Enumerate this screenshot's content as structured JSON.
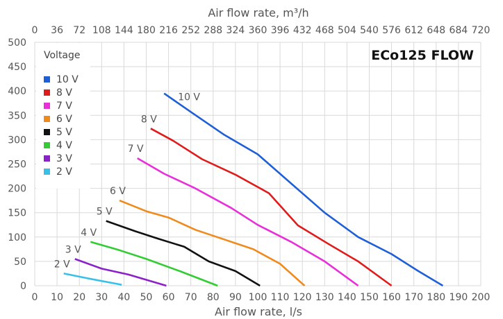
{
  "chart_data": {
    "type": "line",
    "title": "ECo125 FLOW",
    "xlabel": "Air flow rate, l/s",
    "x2label": "Air flow rate, m³/h",
    "ylabel": "",
    "xlim": [
      0,
      200
    ],
    "ylim": [
      0,
      500
    ],
    "x2lim": [
      0,
      720
    ],
    "x_ticks": [
      "0",
      "10",
      "20",
      "30",
      "40",
      "50",
      "60",
      "70",
      "80",
      "90",
      "100",
      "110",
      "120",
      "130",
      "140",
      "150",
      "160",
      "170",
      "180",
      "190",
      "200"
    ],
    "x2_ticks": [
      "0",
      "36",
      "72",
      "108",
      "144",
      "180",
      "216",
      "252",
      "288",
      "324",
      "360",
      "396",
      "432",
      "468",
      "504",
      "540",
      "576",
      "612",
      "648",
      "684",
      "720"
    ],
    "y_ticks": [
      "0",
      "50",
      "100",
      "150",
      "200",
      "250",
      "300",
      "350",
      "400",
      "450",
      "500"
    ],
    "grid": true,
    "legend": {
      "title": "Voltage",
      "placement": "top-left"
    },
    "series": [
      {
        "name": "10 V",
        "label": "10 V",
        "color": "#1f5fd6",
        "x": [
          58,
          70,
          85,
          100,
          115,
          130,
          145,
          160,
          172,
          183
        ],
        "y": [
          395,
          357,
          310,
          270,
          210,
          150,
          100,
          65,
          30,
          0
        ]
      },
      {
        "name": "8 V",
        "label": "8 V",
        "color": "#e01b1b",
        "x": [
          52,
          62,
          75,
          90,
          105,
          118,
          132,
          145,
          160
        ],
        "y": [
          323,
          298,
          260,
          228,
          190,
          124,
          85,
          50,
          0
        ]
      },
      {
        "name": "7 V",
        "label": "7 V",
        "color": "#e830d8",
        "x": [
          46,
          58,
          72,
          88,
          100,
          115,
          130,
          145
        ],
        "y": [
          262,
          230,
          200,
          160,
          125,
          90,
          50,
          0
        ]
      },
      {
        "name": "6 V",
        "label": "6 V",
        "color": "#f08a1c",
        "x": [
          38,
          50,
          60,
          72,
          85,
          98,
          110,
          121
        ],
        "y": [
          175,
          153,
          140,
          115,
          95,
          75,
          45,
          0
        ]
      },
      {
        "name": "5 V",
        "label": "5 V",
        "color": "#111111",
        "x": [
          32,
          45,
          55,
          67,
          78,
          90,
          101
        ],
        "y": [
          133,
          112,
          97,
          80,
          50,
          30,
          0
        ]
      },
      {
        "name": "4 V",
        "label": "4 V",
        "color": "#33cc33",
        "x": [
          25,
          38,
          50,
          65,
          82
        ],
        "y": [
          90,
          73,
          55,
          30,
          0
        ]
      },
      {
        "name": "3 V",
        "label": "3 V",
        "color": "#8a22c8",
        "x": [
          18,
          30,
          42,
          59
        ],
        "y": [
          55,
          35,
          23,
          0
        ]
      },
      {
        "name": "2 V",
        "label": "2 V",
        "color": "#38c0e8",
        "x": [
          13,
          24,
          39
        ],
        "y": [
          25,
          15,
          2
        ]
      }
    ]
  }
}
